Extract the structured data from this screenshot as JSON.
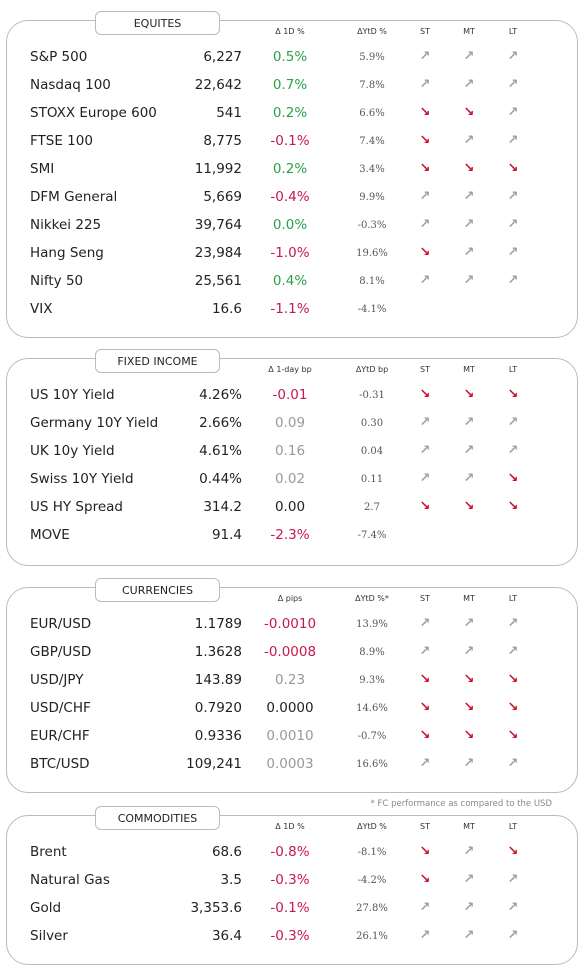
{
  "sections": [
    {
      "title": "EQUITES",
      "headers": [
        "Δ 1D %",
        "ΔYtD %",
        "ST",
        "MT",
        "LT"
      ],
      "rows": [
        [
          "S&P 500",
          "6,227",
          "0.5%",
          "5.9%"
        ],
        [
          "Nasdaq 100",
          "22,642",
          "0.7%",
          "7.8%"
        ],
        [
          "STOXX Europe 600",
          "541",
          "0.2%",
          "6.6%"
        ],
        [
          "FTSE 100",
          "8,775",
          "-0.1%",
          "7.4%"
        ],
        [
          "SMI",
          "11,992",
          "0.2%",
          "3.4%"
        ],
        [
          "DFM General",
          "5,669",
          "-0.4%",
          "9.9%"
        ],
        [
          "Nikkei 225",
          "39,764",
          "0.0%",
          "-0.3%"
        ],
        [
          "Hang Seng",
          "23,984",
          "-1.0%",
          "19.6%"
        ],
        [
          "Nifty  50",
          "25,561",
          "0.4%",
          "8.1%"
        ],
        [
          "VIX",
          "16.6",
          "-1.1%",
          "-4.1%"
        ]
      ]
    },
    {
      "title": "FIXED INCOME",
      "headers": [
        "Δ 1-day bp",
        "ΔYtD bp",
        "ST",
        "MT",
        "LT"
      ],
      "rows": [
        [
          "US 10Y Yield",
          "4.26%",
          "-0.01",
          "-0.31"
        ],
        [
          "Germany 10Y Yield",
          "2.66%",
          "0.09",
          "0.30"
        ],
        [
          "UK 10y Yield",
          "4.61%",
          "0.16",
          "0.04"
        ],
        [
          "Swiss 10Y Yield",
          "0.44%",
          "0.02",
          "0.11"
        ],
        [
          "US HY Spread",
          "314.2",
          "0.00",
          "2.7"
        ],
        [
          "MOVE",
          "91.4",
          "-2.3%",
          "-7.4%"
        ]
      ]
    },
    {
      "title": "CURRENCIES",
      "headers": [
        "Δ pips",
        "ΔYtD %*",
        "ST",
        "MT",
        "LT"
      ],
      "rows": [
        [
          "EUR/USD",
          "1.1789",
          "-0.0010",
          "13.9%"
        ],
        [
          "GBP/USD",
          "1.3628",
          "-0.0008",
          "8.9%"
        ],
        [
          "USD/JPY",
          "143.89",
          "0.23",
          "9.3%"
        ],
        [
          "USD/CHF",
          "0.7920",
          "0.0000",
          "14.6%"
        ],
        [
          "EUR/CHF",
          "0.9336",
          "0.0010",
          "-0.7%"
        ],
        [
          "BTC/USD",
          "109,241",
          "0.0003",
          "16.6%"
        ]
      ]
    },
    {
      "title": "COMMODITIES",
      "headers": [
        "Δ 1D %",
        "ΔYtD %",
        "ST",
        "MT",
        "LT"
      ],
      "rows": [
        [
          "Brent",
          "68.6",
          "-0.8%",
          "-8.1%"
        ],
        [
          "Natural Gas",
          "3.5",
          "-0.3%",
          "-4.2%"
        ],
        [
          "Gold",
          "3,353.6",
          "-0.1%",
          "27.8%"
        ],
        [
          "Silver",
          "36.4",
          "-0.3%",
          "26.1%"
        ]
      ]
    }
  ],
  "footnote": "* FC performance as compared to the USD"
}
